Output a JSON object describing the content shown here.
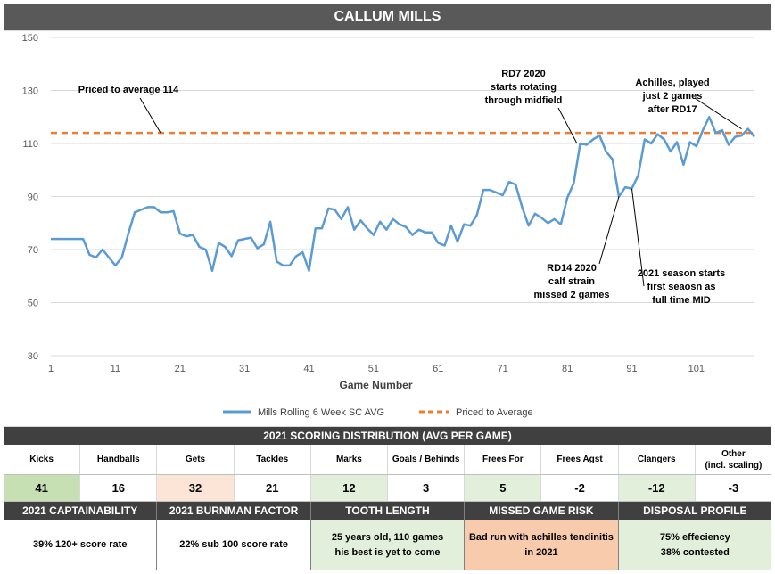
{
  "title": "CALLUM MILLS",
  "chart_data": {
    "type": "line",
    "xlabel": "Game Number",
    "ylabel": "",
    "xlim": [
      1,
      110
    ],
    "ylim": [
      30,
      150
    ],
    "xticks": [
      1,
      11,
      21,
      31,
      41,
      51,
      61,
      71,
      81,
      91,
      101
    ],
    "yticks": [
      30,
      50,
      70,
      90,
      110,
      130,
      150
    ],
    "series": [
      {
        "name": "Mills Rolling 6 Week SC AVG",
        "color": "#5b9bd5",
        "x": [
          1,
          2,
          3,
          4,
          5,
          6,
          7,
          8,
          9,
          10,
          11,
          12,
          13,
          14,
          15,
          16,
          17,
          18,
          19,
          20,
          21,
          22,
          23,
          24,
          25,
          26,
          27,
          28,
          29,
          30,
          31,
          32,
          33,
          34,
          35,
          36,
          37,
          38,
          39,
          40,
          41,
          42,
          43,
          44,
          45,
          46,
          47,
          48,
          49,
          50,
          51,
          52,
          53,
          54,
          55,
          56,
          57,
          58,
          59,
          60,
          61,
          62,
          63,
          64,
          65,
          66,
          67,
          68,
          69,
          70,
          71,
          72,
          73,
          74,
          75,
          76,
          77,
          78,
          79,
          80,
          81,
          82,
          83,
          84,
          85,
          86,
          87,
          88,
          89,
          90,
          91,
          92,
          93,
          94,
          95,
          96,
          97,
          98,
          99,
          100,
          101,
          102,
          103,
          104,
          105,
          106,
          107,
          108,
          109,
          110
        ],
        "y": [
          74,
          74,
          74,
          74,
          74,
          74,
          68,
          67,
          70,
          67,
          64,
          67,
          76,
          84,
          85,
          86,
          86,
          84,
          84,
          84.5,
          76,
          75,
          75.5,
          71,
          70,
          62,
          72.5,
          71,
          67.5,
          73.5,
          74,
          74.5,
          70.5,
          72,
          80.5,
          65.5,
          64,
          64,
          67.5,
          69,
          62,
          78,
          78,
          85.5,
          85,
          81.5,
          86,
          77.5,
          81,
          78,
          75.5,
          80.5,
          77.5,
          81.5,
          79.5,
          78.5,
          75.5,
          77.5,
          76.5,
          76.5,
          72.5,
          71.5,
          79,
          73,
          79.5,
          79,
          83,
          92.5,
          92.5,
          91.5,
          90.5,
          95.5,
          94.5,
          86,
          79,
          83.5,
          82,
          80,
          81.5,
          79.5,
          89.5,
          95,
          110,
          109.5,
          111.5,
          113,
          107,
          104,
          90,
          93.5,
          93,
          98,
          111.5,
          110,
          113.5,
          111.5,
          107,
          110.5,
          102,
          110.5,
          109,
          115,
          120,
          114,
          115,
          109.5,
          112.5,
          113,
          115.5,
          112.5
        ]
      },
      {
        "name": "Priced to Average",
        "color": "#ed7d31",
        "x": [
          1,
          110
        ],
        "y": [
          114,
          114
        ]
      }
    ],
    "annotations": [
      {
        "lines": [
          "Priced to average 114"
        ],
        "x": 18,
        "y": 114
      },
      {
        "lines": [
          "RD7 2020",
          "starts rotating",
          "through midfield"
        ],
        "x": 82.5,
        "y": 110
      },
      {
        "lines": [
          "Achilles, played",
          "just 2 games",
          "after RD17"
        ],
        "x": 108,
        "y": 115.5
      },
      {
        "lines": [
          "RD14 2020",
          "calf strain",
          "missed 2 games"
        ],
        "x": 89,
        "y": 90
      },
      {
        "lines": [
          "2021 season starts",
          "first seaosn as",
          "full time MID"
        ],
        "x": 91,
        "y": 93
      }
    ]
  },
  "distribution": {
    "header": "2021 SCORING DISTRIBUTION (AVG PER GAME)",
    "labels": [
      "Kicks",
      "Handballs",
      "Gets",
      "Tackles",
      "Marks",
      "Goals / Behinds",
      "Frees For",
      "Frees Agst",
      "Clangers",
      "Other\n(incl. scaling)"
    ],
    "values": [
      "41",
      "16",
      "32",
      "21",
      "12",
      "3",
      "5",
      "-2",
      "-12",
      "-3"
    ],
    "highlight": [
      "#c6e0b4",
      "",
      "#fce4d6",
      "",
      "#e2efda",
      "",
      "#e2efda",
      "",
      "#e2efda",
      ""
    ]
  },
  "summary": {
    "headers": [
      "2021 CAPTAINABILITY",
      "2021 BURNMAN FACTOR",
      "TOOTH LENGTH",
      "MISSED GAME RISK",
      "DISPOSAL PROFILE"
    ],
    "notes": [
      "39% 120+ score rate",
      "22% sub 100 score rate",
      "25 years old, 110 games\nhis best is yet to come",
      "Bad run with achilles tendinitis\nin 2021",
      "75% effeciency\n38% contested"
    ],
    "highlight": [
      "",
      "",
      "#e2efda",
      "#f8cbad",
      "#e2efda"
    ]
  }
}
